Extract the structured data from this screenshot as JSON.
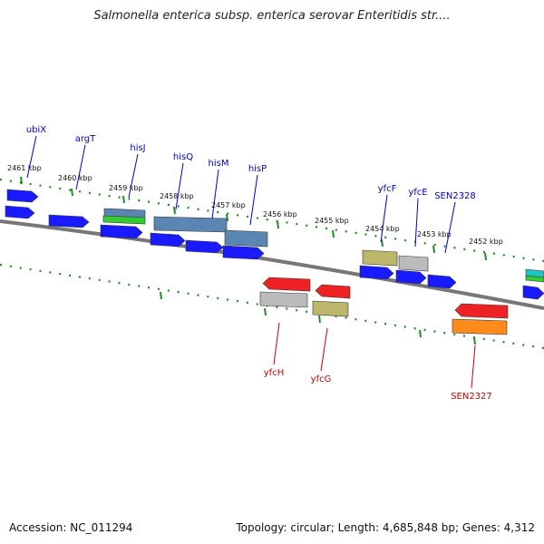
{
  "title": "Salmonella enterica subsp. enterica serovar Enteritidis str....",
  "footer": {
    "accession": "Accession: NC_011294",
    "topology": "Topology: circular; Length: 4,685,848 bp; Genes: 4,312"
  },
  "colors": {
    "forward_label": "#0000cc",
    "reverse_label": "#cc0000",
    "tick": "#228b22",
    "backbone": "#808080",
    "cds_blue": "#1a1aff",
    "steel": "#5b86b3",
    "red": "#ee2222",
    "gray": "#bbbbbb",
    "khaki": "#bdb76b",
    "orange": "#ff8c1a",
    "green": "#33cc33",
    "cyan": "#22c4c4"
  },
  "kbp_labels": [
    "2461 kbp",
    "2460 kbp",
    "2459 kbp",
    "2458 kbp",
    "2457 kbp",
    "2456 kbp",
    "2455 kbp",
    "2454 kbp",
    "2453 kbp",
    "2452 kbp"
  ],
  "forward_labels": [
    "ubiX",
    "argT",
    "hisJ",
    "hisQ",
    "hisM",
    "hisP",
    "yfcF",
    "yfcE",
    "SEN2328"
  ],
  "reverse_labels": [
    "yfcH",
    "yfcG",
    "SEN2327"
  ],
  "features": [
    {
      "color": "cds_blue",
      "dir": "right"
    },
    {
      "color": "cds_blue",
      "dir": "right"
    },
    {
      "color": "cds_blue",
      "dir": "right"
    },
    {
      "color": "steel",
      "dir": "none"
    },
    {
      "color": "green",
      "dir": "none"
    },
    {
      "color": "cds_blue",
      "dir": "right"
    },
    {
      "color": "steel",
      "dir": "none"
    },
    {
      "color": "steel",
      "dir": "none"
    },
    {
      "color": "cds_blue",
      "dir": "right"
    },
    {
      "color": "cds_blue",
      "dir": "right"
    },
    {
      "color": "cds_blue",
      "dir": "right"
    },
    {
      "color": "khaki",
      "dir": "none"
    },
    {
      "color": "gray",
      "dir": "none"
    },
    {
      "color": "cds_blue",
      "dir": "right"
    },
    {
      "color": "cds_blue",
      "dir": "right"
    },
    {
      "color": "cds_blue",
      "dir": "right"
    },
    {
      "color": "cyan",
      "dir": "none"
    },
    {
      "color": "green",
      "dir": "none"
    },
    {
      "color": "cds_blue",
      "dir": "right"
    },
    {
      "color": "red",
      "dir": "left"
    },
    {
      "color": "gray",
      "dir": "none"
    },
    {
      "color": "red",
      "dir": "left"
    },
    {
      "color": "khaki",
      "dir": "none"
    },
    {
      "color": "red",
      "dir": "left"
    },
    {
      "color": "orange",
      "dir": "none"
    }
  ]
}
